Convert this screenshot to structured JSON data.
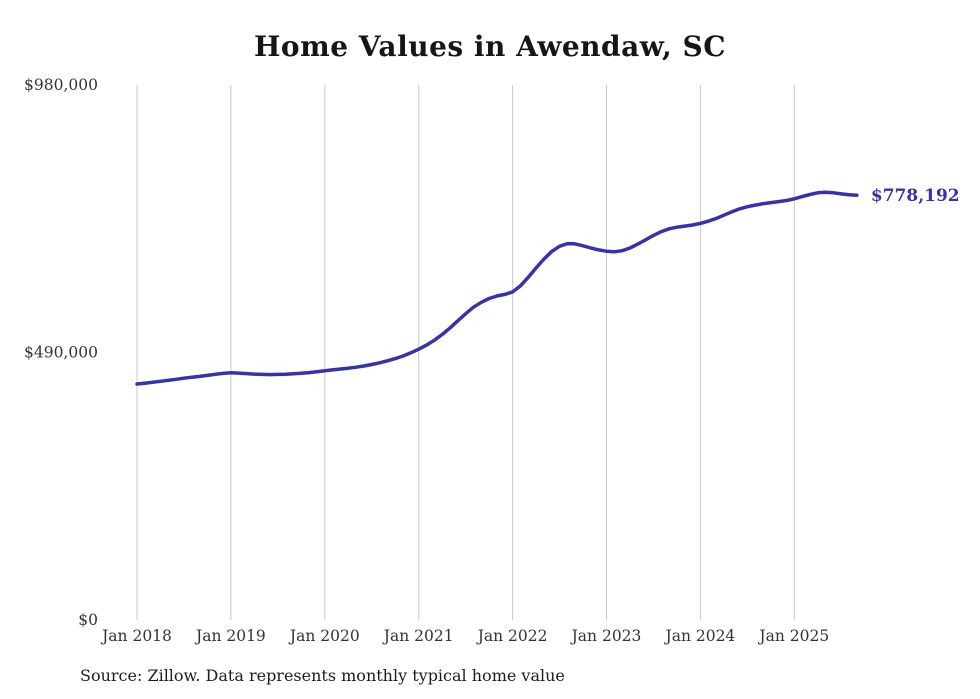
{
  "page": {
    "background": "#ffffff"
  },
  "chart": {
    "title": "Home Values in Awendaw, SC",
    "source": "Source: Zillow. Data represents monthly typical home value",
    "latest_value_label": "$778,192"
  },
  "chart_data": {
    "type": "line",
    "title": "Home Values in Awendaw, SC",
    "xlabel": "",
    "ylabel": "",
    "ylim": [
      0,
      980000
    ],
    "grid": "vertical-only",
    "legend": "none",
    "line_color": "#3432ad",
    "grid_color": "#c9c9c9",
    "series_name": "Typical home value (monthly)",
    "latest_value": 778192,
    "latest_value_label": "$778,192",
    "source": "Source: Zillow. Data represents monthly typical home value",
    "y_ticks": [
      {
        "label": "$980,000",
        "value": 980000
      },
      {
        "label": "$490,000",
        "value": 490000
      },
      {
        "label": "$0",
        "value": 0
      }
    ],
    "x_ticks": [
      "Jan 2018",
      "Jan 2019",
      "Jan 2020",
      "Jan 2021",
      "Jan 2022",
      "Jan 2023",
      "Jan 2024",
      "Jan 2025"
    ],
    "months": [
      "2018-01",
      "2018-02",
      "2018-03",
      "2018-04",
      "2018-05",
      "2018-06",
      "2018-07",
      "2018-08",
      "2018-09",
      "2018-10",
      "2018-11",
      "2018-12",
      "2019-01",
      "2019-02",
      "2019-03",
      "2019-04",
      "2019-05",
      "2019-06",
      "2019-07",
      "2019-08",
      "2019-09",
      "2019-10",
      "2019-11",
      "2019-12",
      "2020-01",
      "2020-02",
      "2020-03",
      "2020-04",
      "2020-05",
      "2020-06",
      "2020-07",
      "2020-08",
      "2020-09",
      "2020-10",
      "2020-11",
      "2020-12",
      "2021-01",
      "2021-02",
      "2021-03",
      "2021-04",
      "2021-05",
      "2021-06",
      "2021-07",
      "2021-08",
      "2021-09",
      "2021-10",
      "2021-11",
      "2021-12",
      "2022-01",
      "2022-02",
      "2022-03",
      "2022-04",
      "2022-05",
      "2022-06",
      "2022-07",
      "2022-08",
      "2022-09",
      "2022-10",
      "2022-11",
      "2022-12",
      "2023-01",
      "2023-02",
      "2023-03",
      "2023-04",
      "2023-05",
      "2023-06",
      "2023-07",
      "2023-08",
      "2023-09",
      "2023-10",
      "2023-11",
      "2023-12",
      "2024-01",
      "2024-02",
      "2024-03",
      "2024-04",
      "2024-05",
      "2024-06",
      "2024-07",
      "2024-08",
      "2024-09",
      "2024-10",
      "2024-11",
      "2024-12",
      "2025-01",
      "2025-02",
      "2025-03",
      "2025-04",
      "2025-05",
      "2025-06",
      "2025-07",
      "2025-08",
      "2025-09"
    ],
    "values": [
      432300,
      433800,
      435500,
      437200,
      439000,
      441000,
      443000,
      444800,
      446300,
      448000,
      450000,
      451800,
      452800,
      452200,
      451300,
      450400,
      449800,
      449500,
      449800,
      450300,
      451000,
      452000,
      453200,
      454800,
      456500,
      458200,
      459800,
      461300,
      463000,
      465200,
      468000,
      471200,
      474800,
      478800,
      483500,
      489500,
      496000,
      503500,
      512500,
      523000,
      535000,
      548000,
      561000,
      573000,
      582000,
      589000,
      593500,
      596500,
      601000,
      612000,
      628000,
      645000,
      661000,
      675000,
      684500,
      689500,
      689000,
      685500,
      681500,
      678000,
      675500,
      674500,
      676500,
      681500,
      688500,
      696500,
      704500,
      711500,
      716500,
      719500,
      721500,
      723500,
      726500,
      730500,
      735500,
      741500,
      747500,
      753000,
      757000,
      760000,
      762500,
      764500,
      766500,
      768500,
      771500,
      775500,
      779500,
      782500,
      783500,
      782500,
      780500,
      779000,
      778192
    ]
  }
}
